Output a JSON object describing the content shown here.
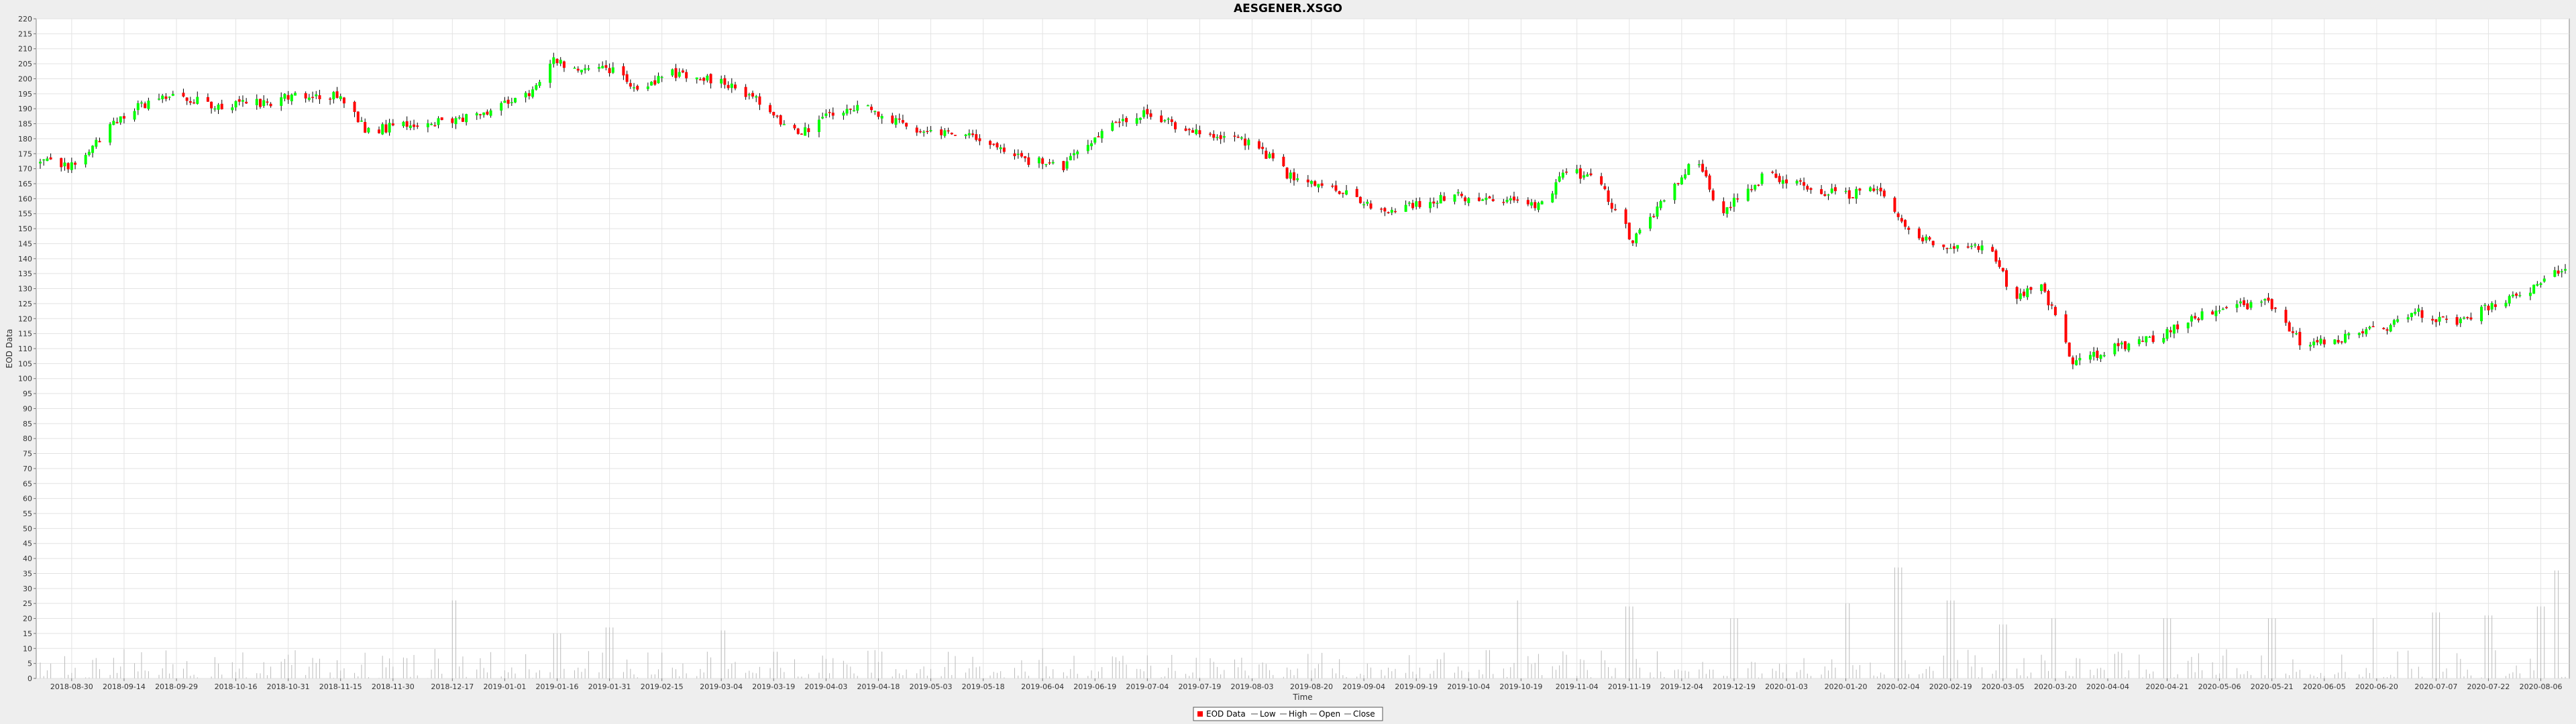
{
  "chart_data": {
    "type": "candlestick",
    "title": "AESGENER.XSGO",
    "xlabel": "Time",
    "ylabel": "EOD Data",
    "ylim": [
      0,
      220
    ],
    "y_ticks": [
      0,
      5,
      10,
      15,
      20,
      25,
      30,
      35,
      40,
      45,
      50,
      55,
      60,
      65,
      70,
      75,
      80,
      85,
      90,
      95,
      100,
      105,
      110,
      115,
      120,
      125,
      130,
      135,
      140,
      145,
      150,
      155,
      160,
      165,
      170,
      175,
      180,
      185,
      190,
      195,
      200,
      205,
      210,
      215,
      220
    ],
    "x_range": [
      "2018-08-21",
      "2020-08-13"
    ],
    "x_ticks": [
      "2018-08-30",
      "2018-09-14",
      "2018-09-29",
      "2018-10-16",
      "2018-10-31",
      "2018-11-15",
      "2018-11-30",
      "2018-12-17",
      "2019-01-01",
      "2019-01-16",
      "2019-01-31",
      "2019-02-15",
      "2019-03-04",
      "2019-03-19",
      "2019-04-03",
      "2019-04-18",
      "2019-05-03",
      "2019-05-18",
      "2019-06-04",
      "2019-06-19",
      "2019-07-04",
      "2019-07-19",
      "2019-08-03",
      "2019-08-20",
      "2019-09-04",
      "2019-09-19",
      "2019-10-04",
      "2019-10-19",
      "2019-11-04",
      "2019-11-19",
      "2019-12-04",
      "2019-12-19",
      "2020-01-03",
      "2020-01-20",
      "2020-02-04",
      "2020-02-19",
      "2020-03-05",
      "2020-03-20",
      "2020-04-04",
      "2020-04-21",
      "2020-05-06",
      "2020-05-21",
      "2020-06-05",
      "2020-06-20",
      "2020-07-07",
      "2020-07-22",
      "2020-08-06"
    ],
    "grid": true,
    "legend_position": "bottom-center",
    "legend": [
      "EOD Data",
      "Low",
      "High",
      "Open",
      "Close"
    ],
    "colors": {
      "up": "#00ff00",
      "down": "#ff0000",
      "wick": "#000000",
      "volume": "#bbbbbb",
      "legend_box": "#ff0000"
    },
    "series": [
      {
        "name": "Close",
        "values": [
          [
            "2018-08-21",
            172
          ],
          [
            "2018-09-01",
            171
          ],
          [
            "2018-09-10",
            184
          ],
          [
            "2018-09-17",
            190
          ],
          [
            "2018-09-29",
            195
          ],
          [
            "2018-10-10",
            191
          ],
          [
            "2018-10-25",
            192
          ],
          [
            "2018-11-01",
            195
          ],
          [
            "2018-11-15",
            194
          ],
          [
            "2018-11-22",
            183
          ],
          [
            "2018-12-01",
            184
          ],
          [
            "2018-12-17",
            186
          ],
          [
            "2018-12-28",
            190
          ],
          [
            "2019-01-08",
            195
          ],
          [
            "2019-01-15",
            207
          ],
          [
            "2019-01-20",
            203
          ],
          [
            "2019-01-30",
            204
          ],
          [
            "2019-02-08",
            197
          ],
          [
            "2019-02-18",
            202
          ],
          [
            "2019-03-05",
            199
          ],
          [
            "2019-03-15",
            192
          ],
          [
            "2019-03-26",
            181
          ],
          [
            "2019-04-05",
            189
          ],
          [
            "2019-04-15",
            190
          ],
          [
            "2019-04-30",
            183
          ],
          [
            "2019-05-15",
            182
          ],
          [
            "2019-05-25",
            174
          ],
          [
            "2019-06-10",
            171
          ],
          [
            "2019-06-22",
            183
          ],
          [
            "2019-07-04",
            189
          ],
          [
            "2019-07-15",
            183
          ],
          [
            "2019-07-30",
            180
          ],
          [
            "2019-08-06",
            176
          ],
          [
            "2019-08-15",
            166
          ],
          [
            "2019-08-30",
            162
          ],
          [
            "2019-09-10",
            155
          ],
          [
            "2019-09-20",
            158
          ],
          [
            "2019-10-01",
            161
          ],
          [
            "2019-10-13",
            159
          ],
          [
            "2019-10-25",
            158
          ],
          [
            "2019-11-01",
            170
          ],
          [
            "2019-11-10",
            166
          ],
          [
            "2019-11-20",
            146
          ],
          [
            "2019-12-01",
            162
          ],
          [
            "2019-12-08",
            174
          ],
          [
            "2019-12-15",
            155
          ],
          [
            "2019-12-28",
            168
          ],
          [
            "2020-01-10",
            163
          ],
          [
            "2020-01-20",
            161
          ],
          [
            "2020-01-30",
            164
          ],
          [
            "2020-02-08",
            147
          ],
          [
            "2020-02-20",
            144
          ],
          [
            "2020-03-02",
            143
          ],
          [
            "2020-03-08",
            126
          ],
          [
            "2020-03-16",
            132
          ],
          [
            "2020-03-25",
            105
          ],
          [
            "2020-04-05",
            110
          ],
          [
            "2020-04-18",
            114
          ],
          [
            "2020-04-29",
            120
          ],
          [
            "2020-05-08",
            124
          ],
          [
            "2020-05-20",
            125
          ],
          [
            "2020-05-30",
            111
          ],
          [
            "2020-06-10",
            113
          ],
          [
            "2020-06-22",
            117
          ],
          [
            "2020-07-02",
            122
          ],
          [
            "2020-07-13",
            118
          ],
          [
            "2020-07-24",
            125
          ],
          [
            "2020-08-02",
            129
          ],
          [
            "2020-08-10",
            137
          ],
          [
            "2020-08-13",
            135
          ]
        ]
      },
      {
        "name": "Volume",
        "values": [
          [
            "2018-12-17",
            26
          ],
          [
            "2019-01-16",
            15
          ],
          [
            "2019-01-31",
            17
          ],
          [
            "2019-03-04",
            16
          ],
          [
            "2019-10-19",
            26
          ],
          [
            "2019-11-19",
            24
          ],
          [
            "2019-12-19",
            20
          ],
          [
            "2020-01-20",
            25
          ],
          [
            "2020-02-04",
            37
          ],
          [
            "2020-02-19",
            26
          ],
          [
            "2020-03-05",
            18
          ],
          [
            "2020-03-20",
            20
          ],
          [
            "2020-04-21",
            20
          ],
          [
            "2020-05-21",
            20
          ],
          [
            "2020-06-20",
            20
          ],
          [
            "2020-07-07",
            22
          ],
          [
            "2020-07-22",
            21
          ],
          [
            "2020-08-06",
            24
          ],
          [
            "2020-08-10",
            36
          ]
        ]
      }
    ]
  }
}
